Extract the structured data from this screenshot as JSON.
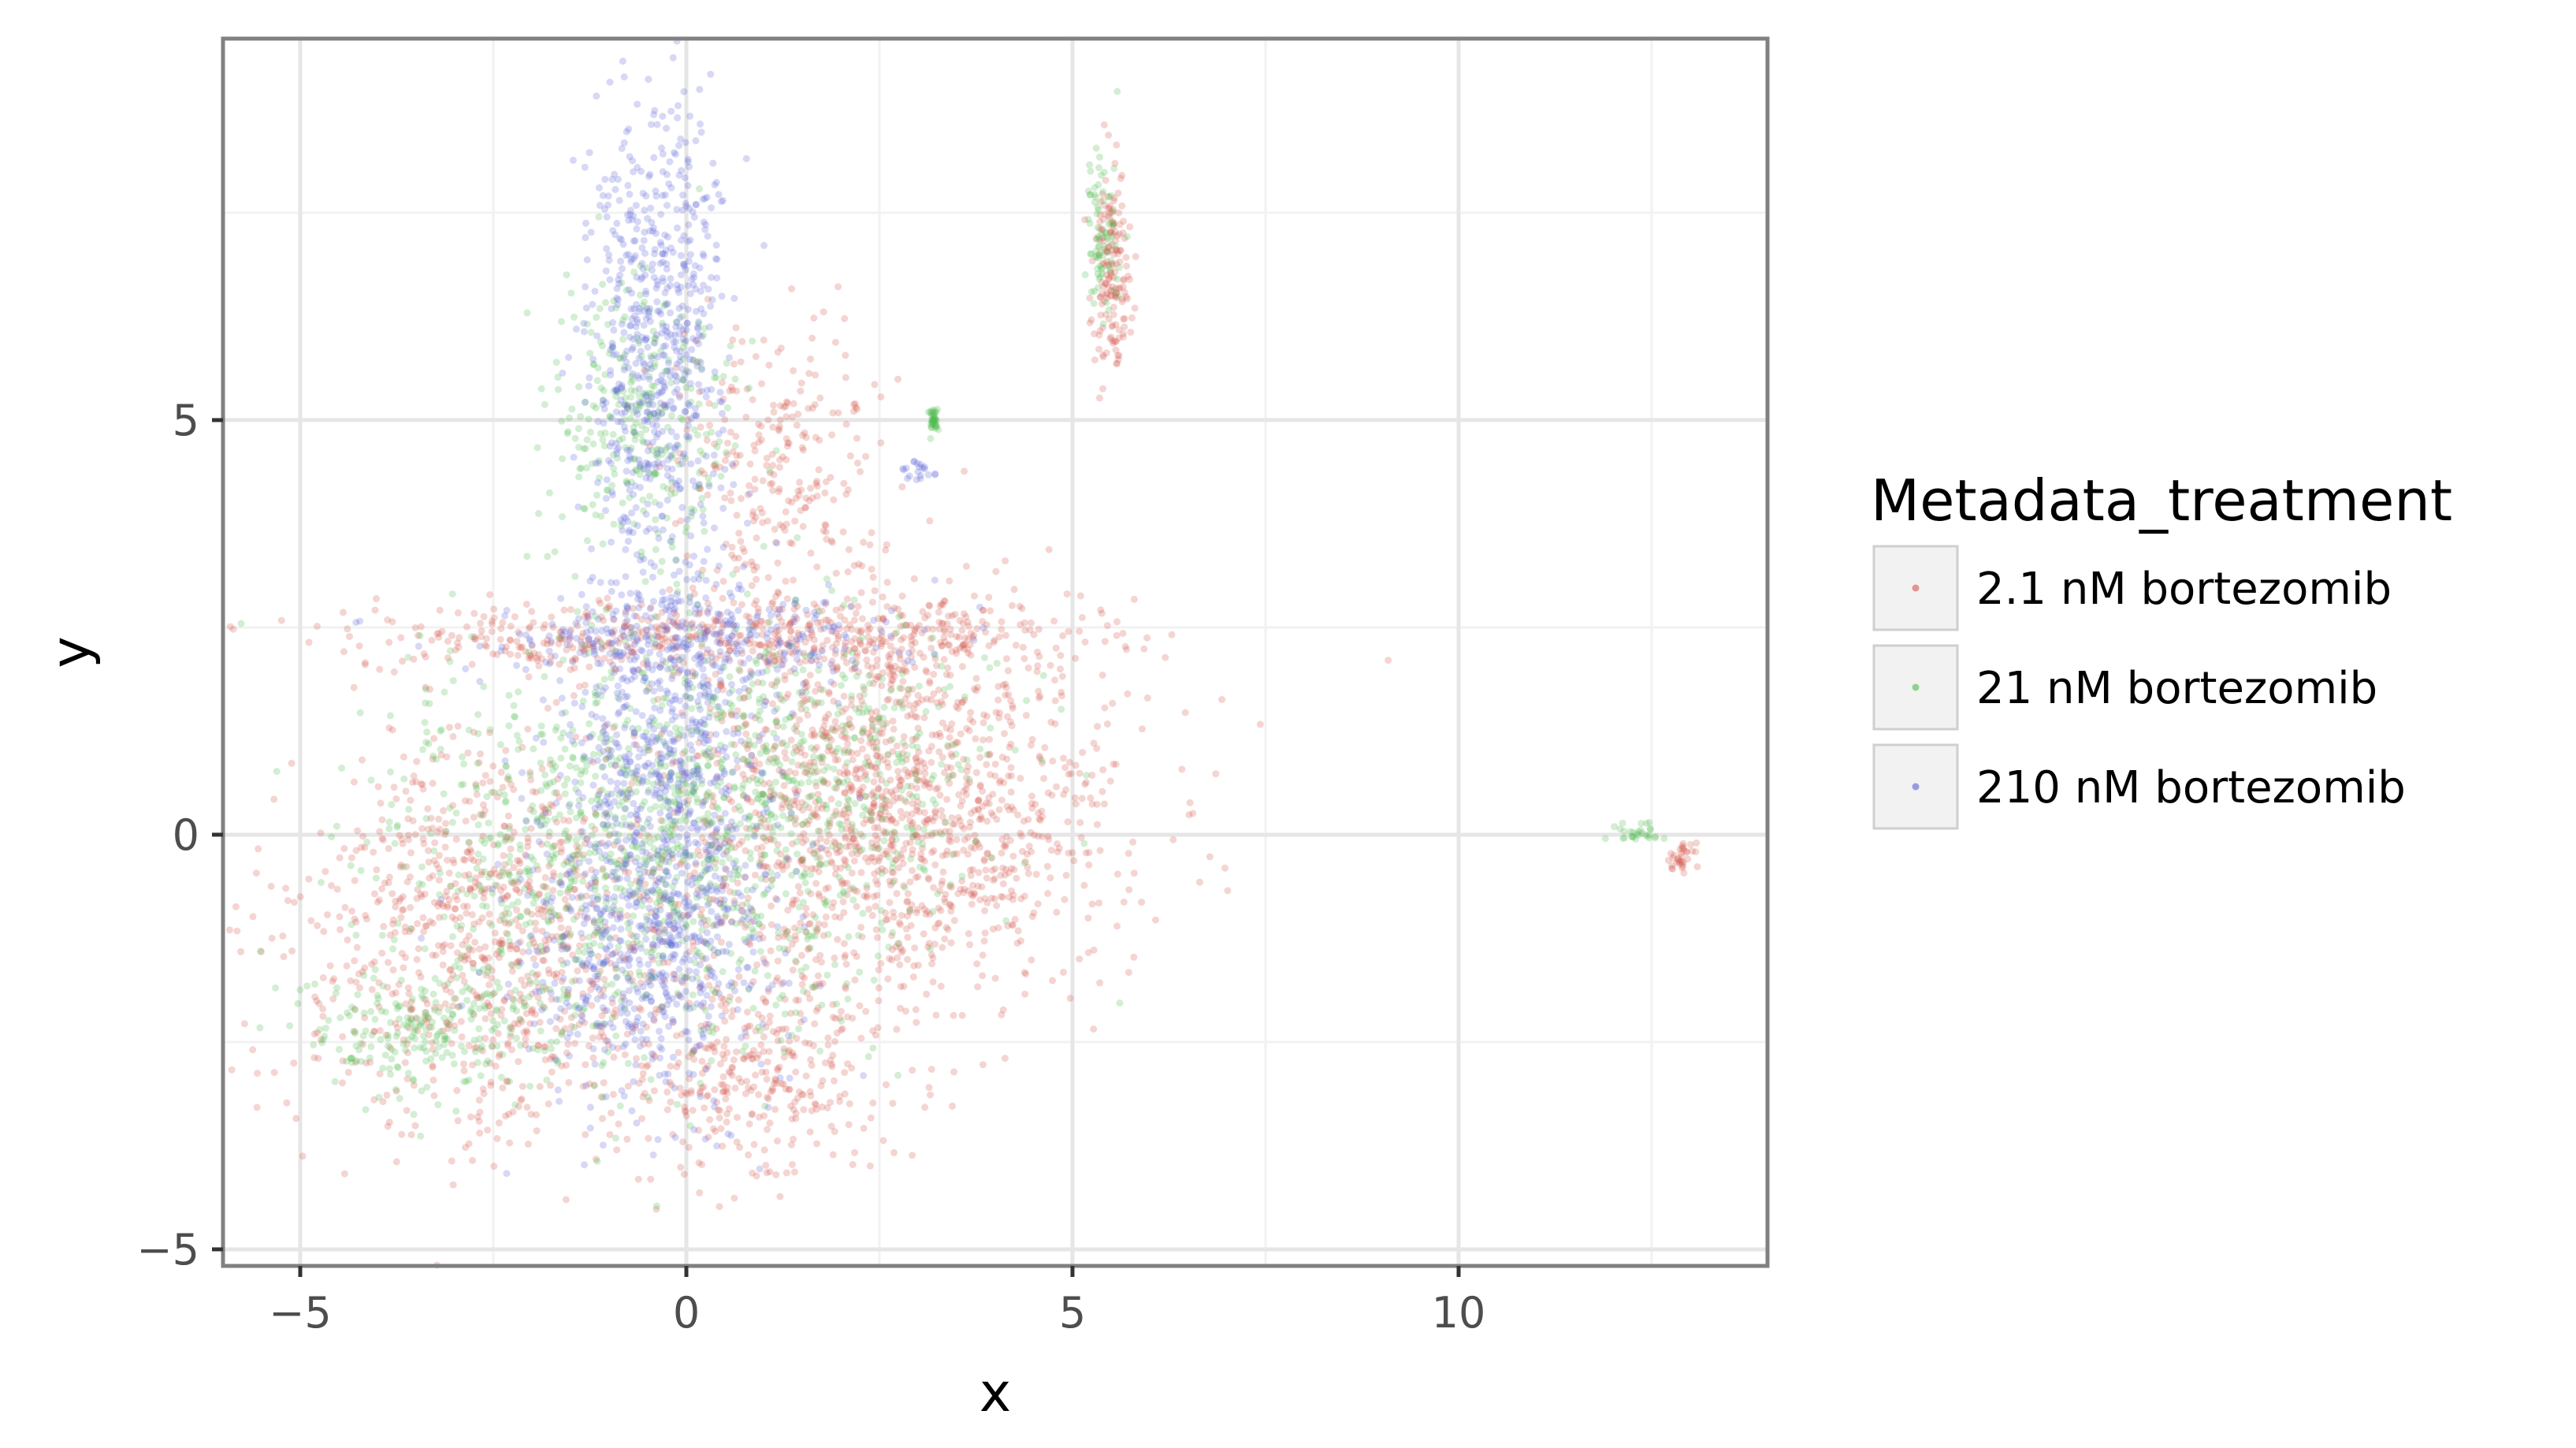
{
  "chart_data": {
    "type": "scatter",
    "title": "",
    "xlabel": "x",
    "ylabel": "y",
    "xlim": [
      -6,
      14
    ],
    "ylim": [
      -5.2,
      9.6
    ],
    "x_ticks": [
      -5,
      0,
      5,
      10
    ],
    "x_tick_labels": [
      "−5",
      "0",
      "5",
      "10"
    ],
    "y_ticks": [
      -5,
      0,
      5
    ],
    "y_tick_labels": [
      "−5",
      "0",
      "5"
    ],
    "grid": true,
    "legend": {
      "title": "Metadata_treatment",
      "position": "right",
      "entries": [
        "2.1 nM bortezomib",
        "21 nM bortezomib",
        "210 nM bortezomib"
      ]
    },
    "point_opacity": 0.25,
    "series": [
      {
        "name": "2.1 nM bortezomib",
        "color": "#d4584d",
        "clusters": [
          {
            "cx": 2.6,
            "cy": 0.4,
            "sx": 1.5,
            "sy": 1.2,
            "n": 1500
          },
          {
            "cx": -2.6,
            "cy": -1.3,
            "sx": 1.3,
            "sy": 1.2,
            "n": 900
          },
          {
            "cx": 0.8,
            "cy": -2.8,
            "sx": 0.9,
            "sy": 0.7,
            "n": 350
          },
          {
            "cx": 0.5,
            "cy": 2.4,
            "sx": 2.3,
            "sy": 0.22,
            "n": 550
          },
          {
            "cx": 1.2,
            "cy": 4.5,
            "sx": 0.7,
            "sy": 0.8,
            "n": 250
          },
          {
            "cx": 5.5,
            "cy": 6.9,
            "sx": 0.12,
            "sy": 0.6,
            "n": 170
          },
          {
            "cx": 12.9,
            "cy": -0.25,
            "sx": 0.08,
            "sy": 0.09,
            "n": 35
          }
        ]
      },
      {
        "name": "21 nM bortezomib",
        "color": "#4fbb4f",
        "clusters": [
          {
            "cx": -1.0,
            "cy": -0.4,
            "sx": 1.6,
            "sy": 1.2,
            "n": 800
          },
          {
            "cx": 1.2,
            "cy": 0.6,
            "sx": 1.4,
            "sy": 1.0,
            "n": 600
          },
          {
            "cx": -0.6,
            "cy": 5.0,
            "sx": 0.6,
            "sy": 0.9,
            "n": 300
          },
          {
            "cx": -3.5,
            "cy": -2.4,
            "sx": 0.8,
            "sy": 0.35,
            "n": 200
          },
          {
            "cx": 5.4,
            "cy": 7.2,
            "sx": 0.12,
            "sy": 0.5,
            "n": 80
          },
          {
            "cx": 3.2,
            "cy": 5.0,
            "sx": 0.03,
            "sy": 0.07,
            "n": 40
          },
          {
            "cx": 12.3,
            "cy": 0.0,
            "sx": 0.15,
            "sy": 0.06,
            "n": 30
          }
        ]
      },
      {
        "name": "210 nM bortezomib",
        "color": "#5c63d6",
        "clusters": [
          {
            "cx": -0.3,
            "cy": 0.4,
            "sx": 0.7,
            "sy": 1.6,
            "n": 900
          },
          {
            "cx": -0.4,
            "cy": 6.2,
            "sx": 0.45,
            "sy": 1.3,
            "n": 600
          },
          {
            "cx": -0.7,
            "cy": -1.5,
            "sx": 0.9,
            "sy": 0.8,
            "n": 300
          },
          {
            "cx": 0.2,
            "cy": 2.3,
            "sx": 1.5,
            "sy": 0.3,
            "n": 250
          },
          {
            "cx": 3.0,
            "cy": 4.4,
            "sx": 0.12,
            "sy": 0.05,
            "n": 20
          }
        ]
      }
    ]
  }
}
